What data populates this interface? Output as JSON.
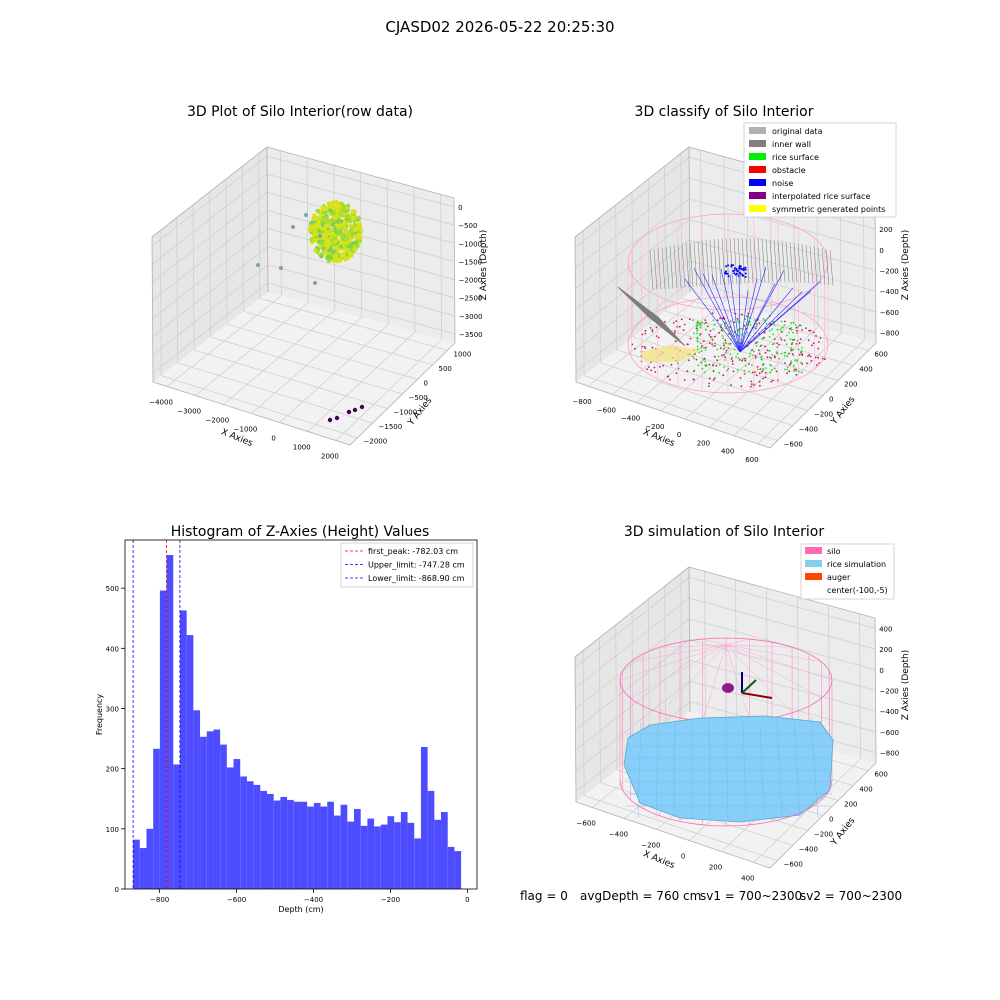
{
  "suptitle": "CJASD02 2026-05-22 20:25:30",
  "footer": {
    "flag": "flag = 0",
    "avg": "avgDepth = 760 cm",
    "sv1": "sv1 = 700~2300",
    "sv2": "sv2 = 700~2300"
  },
  "colors": {
    "histogram": "#4d4dff",
    "first_peak": "#ff0000",
    "limits": "#0000ff",
    "silo_wire": "#ff69b4",
    "rice_sim": "#87cefa"
  },
  "chart_data": [
    {
      "type": "scatter3d",
      "title": "3D Plot of Silo Interior(row data)",
      "xlabel": "X Axies",
      "ylabel": "Y Axies",
      "zlabel": "Z Axies (Depth)",
      "xticks": [
        "−4000",
        "−3000",
        "−2000",
        "−1000",
        "0",
        "1000",
        "2000"
      ],
      "yticks": [
        "1000",
        "500",
        "0",
        "−500",
        "−1000",
        "−1500",
        "−2000"
      ],
      "zticks": [
        "0",
        "−500",
        "−1000",
        "−1500",
        "−2000",
        "−2500",
        "−3000",
        "−3500"
      ],
      "grid": true
    },
    {
      "type": "scatter3d",
      "title": "3D classify of Silo Interior",
      "xlabel": "X Axies",
      "ylabel": "Y Axies",
      "zlabel": "Z Axies (Depth)",
      "xticks": [
        "−800",
        "−600",
        "−400",
        "−200",
        "0",
        "200",
        "400",
        "600"
      ],
      "yticks": [
        "600",
        "400",
        "200",
        "0",
        "−200",
        "−400",
        "−600"
      ],
      "zticks": [
        "400",
        "200",
        "0",
        "−200",
        "−400",
        "−600",
        "−800"
      ],
      "legend_position": "top-right",
      "legend": [
        {
          "label": "original data",
          "color": "#b0b0b0"
        },
        {
          "label": "inner wall",
          "color": "#808080"
        },
        {
          "label": "rice surface",
          "color": "#00ee00"
        },
        {
          "label": "obstacle",
          "color": "#ff0000"
        },
        {
          "label": "noise",
          "color": "#0000ff"
        },
        {
          "label": "interpolated rice surface",
          "color": "#800080"
        },
        {
          "label": "symmetric generated points",
          "color": "#ffff00"
        }
      ],
      "grid": true
    },
    {
      "type": "bar",
      "title": "Histogram of Z-Axies (Height) Values",
      "xlabel": "Depth (cm)",
      "ylabel": "Frequency",
      "xlim": [
        -890,
        25
      ],
      "ylim": [
        0,
        580
      ],
      "xticks": [
        -800,
        -600,
        -400,
        -200,
        0
      ],
      "xtick_labels": [
        "−800",
        "−600",
        "−400",
        "−200",
        "0"
      ],
      "yticks": [
        0,
        100,
        200,
        300,
        400,
        500
      ],
      "bin_start": -868.9,
      "bin_width": 17.4,
      "values": [
        82,
        68,
        100,
        233,
        496,
        555,
        207,
        463,
        422,
        297,
        253,
        262,
        265,
        240,
        202,
        216,
        187,
        179,
        173,
        163,
        158,
        147,
        153,
        148,
        145,
        145,
        137,
        143,
        137,
        145,
        122,
        140,
        112,
        133,
        105,
        117,
        104,
        107,
        121,
        111,
        128,
        110,
        84,
        236,
        163,
        115,
        128,
        70,
        63
      ],
      "lines": [
        {
          "label": "first_peak: -782.03 cm",
          "x": -782.03,
          "color": "#ff0000"
        },
        {
          "label": "Upper_limit: -747.28 cm",
          "x": -747.28,
          "color": "#0000ff"
        },
        {
          "label": "Lower_limit: -868.90 cm",
          "x": -868.9,
          "color": "#0000ff"
        }
      ],
      "legend_position": "top-right",
      "grid": false
    },
    {
      "type": "surface3d",
      "title": "3D simulation of Silo Interior",
      "xlabel": "X Axies",
      "ylabel": "Y Axies",
      "zlabel": "Z Axies (Depth)",
      "xticks": [
        "−600",
        "−400",
        "−200",
        "0",
        "200",
        "400"
      ],
      "yticks": [
        "600",
        "400",
        "200",
        "0",
        "−200",
        "−400",
        "−600"
      ],
      "zticks": [
        "400",
        "200",
        "0",
        "−200",
        "−400",
        "−600",
        "−800"
      ],
      "legend_position": "top-right",
      "legend": [
        {
          "label": "silo",
          "color": "#ff69b4"
        },
        {
          "label": "rice simulation",
          "color": "#87ceeb"
        },
        {
          "label": "auger",
          "color": "#ff4500"
        },
        {
          "label": "center(-100,-5)",
          "color": ""
        }
      ],
      "grid": true
    }
  ]
}
